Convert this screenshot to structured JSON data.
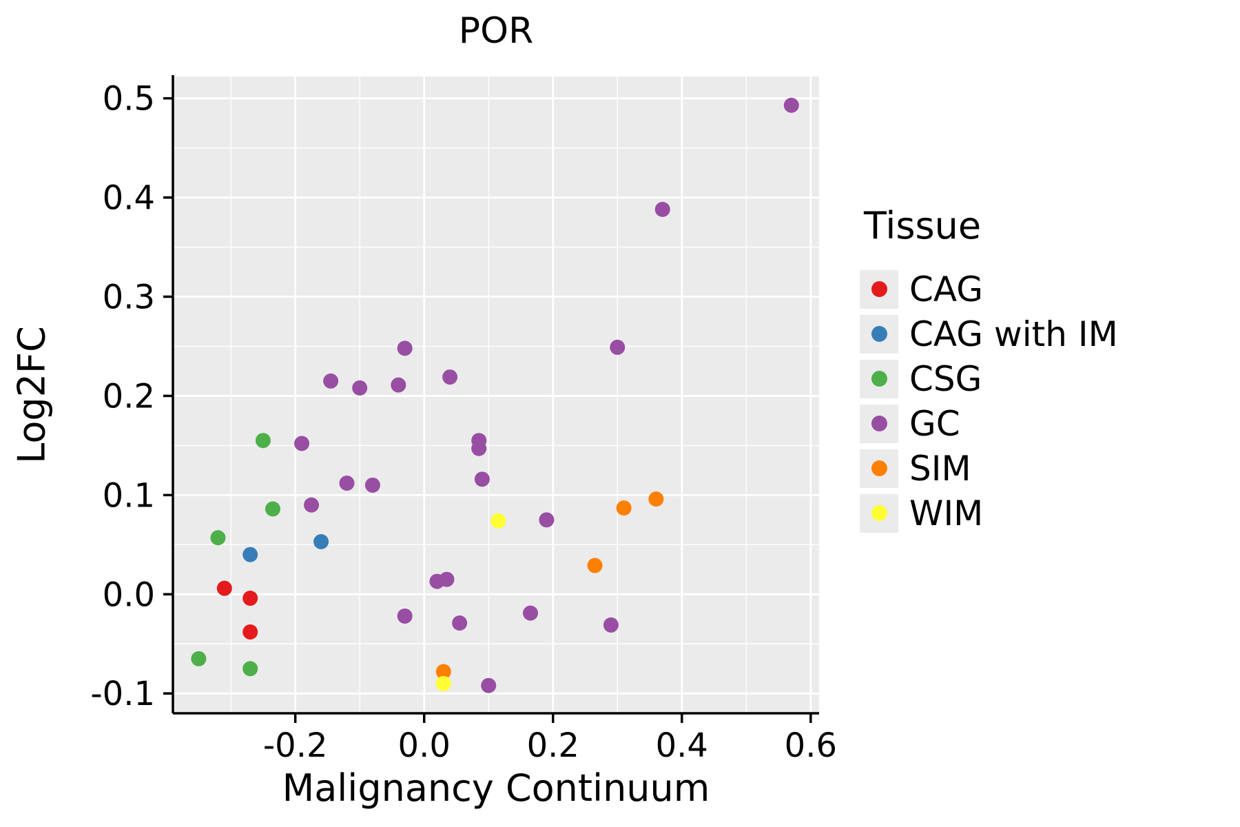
{
  "chart_data": {
    "type": "scatter",
    "title": "POR",
    "xlabel": "Malignancy Continuum",
    "ylabel": "Log2FC",
    "xlim": [
      -0.39,
      0.613
    ],
    "ylim": [
      -0.12,
      0.522
    ],
    "x_ticks": [
      -0.2,
      0.0,
      0.2,
      0.4,
      0.6
    ],
    "x_tick_labels": [
      "-0.2",
      "0.0",
      "0.2",
      "0.4",
      "0.6"
    ],
    "y_ticks": [
      -0.1,
      0.0,
      0.1,
      0.2,
      0.3,
      0.4,
      0.5
    ],
    "y_tick_labels": [
      "-0.1",
      "0.0",
      "0.1",
      "0.2",
      "0.3",
      "0.4",
      "0.5"
    ],
    "x_minor_ticks": [
      -0.3,
      -0.1,
      0.1,
      0.3,
      0.5
    ],
    "y_minor_ticks": [
      -0.05,
      0.05,
      0.15,
      0.25,
      0.35,
      0.45
    ],
    "grid": true,
    "legend_title": "Tissue",
    "legend_position": "right",
    "panel_bg": "#EBEBEB",
    "grid_color": "#FFFFFF",
    "axis_color": "#000000",
    "point_radius": 11,
    "series": [
      {
        "name": "CAG",
        "color": "#E41A1C",
        "points": [
          [
            -0.31,
            0.006
          ],
          [
            -0.27,
            -0.004
          ],
          [
            -0.27,
            -0.038
          ]
        ]
      },
      {
        "name": "CAG with IM",
        "color": "#377EB8",
        "points": [
          [
            -0.27,
            0.04
          ],
          [
            -0.16,
            0.053
          ]
        ]
      },
      {
        "name": "CSG",
        "color": "#4DAF4A",
        "points": [
          [
            -0.32,
            0.057
          ],
          [
            -0.25,
            0.155
          ],
          [
            -0.235,
            0.086
          ],
          [
            -0.35,
            -0.065
          ],
          [
            -0.27,
            -0.075
          ]
        ]
      },
      {
        "name": "GC",
        "color": "#984EA3",
        "points": [
          [
            0.57,
            0.493
          ],
          [
            0.37,
            0.388
          ],
          [
            0.3,
            0.249
          ],
          [
            -0.03,
            0.248
          ],
          [
            0.04,
            0.219
          ],
          [
            -0.145,
            0.215
          ],
          [
            -0.1,
            0.208
          ],
          [
            -0.04,
            0.211
          ],
          [
            -0.19,
            0.152
          ],
          [
            0.085,
            0.155
          ],
          [
            0.085,
            0.147
          ],
          [
            0.09,
            0.116
          ],
          [
            -0.12,
            0.112
          ],
          [
            -0.08,
            0.11
          ],
          [
            -0.175,
            0.09
          ],
          [
            0.19,
            0.075
          ],
          [
            0.02,
            0.013
          ],
          [
            0.035,
            0.015
          ],
          [
            -0.03,
            -0.022
          ],
          [
            0.055,
            -0.029
          ],
          [
            0.165,
            -0.019
          ],
          [
            0.29,
            -0.031
          ],
          [
            0.1,
            -0.092
          ]
        ]
      },
      {
        "name": "SIM",
        "color": "#FF7F00",
        "points": [
          [
            0.31,
            0.087
          ],
          [
            0.36,
            0.096
          ],
          [
            0.265,
            0.029
          ],
          [
            0.03,
            -0.078
          ]
        ]
      },
      {
        "name": "WIM",
        "color": "#FFFF33",
        "points": [
          [
            0.115,
            0.074
          ],
          [
            0.03,
            -0.09
          ]
        ]
      }
    ]
  }
}
